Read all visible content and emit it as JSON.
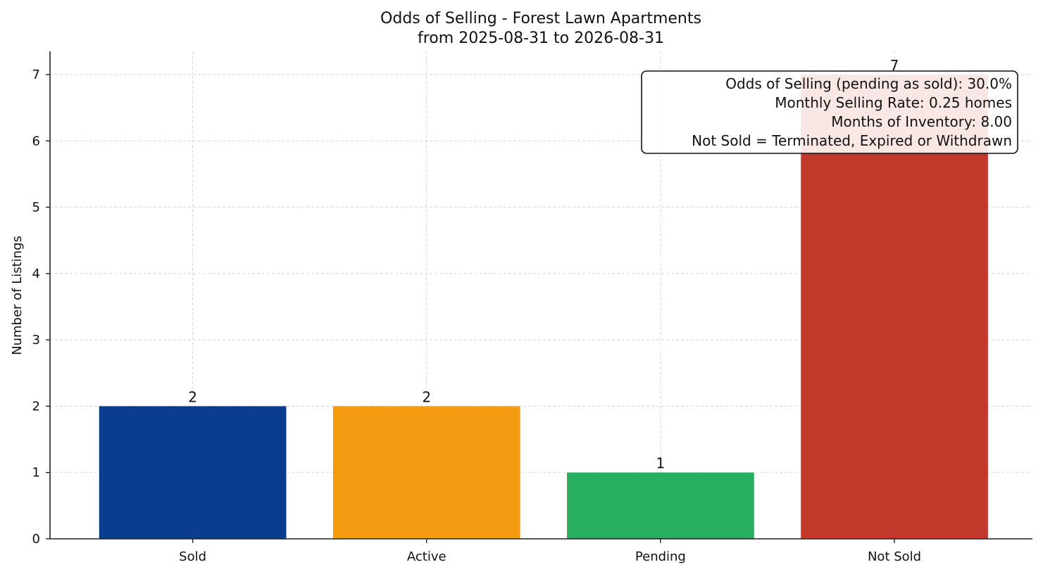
{
  "chart_data": {
    "type": "bar",
    "title": "Odds of Selling - Forest Lawn Apartments",
    "subtitle": "from 2025-08-31 to 2026-08-31",
    "xlabel": "",
    "ylabel": "Number of Listings",
    "categories": [
      "Sold",
      "Active",
      "Pending",
      "Not Sold"
    ],
    "values": [
      2,
      2,
      1,
      7
    ],
    "colors": [
      "#0b3d8f",
      "#f39c12",
      "#27ae60",
      "#c0392b"
    ],
    "data_labels": [
      "2",
      "2",
      "1",
      "7"
    ],
    "yticks": [
      0,
      1,
      2,
      3,
      4,
      5,
      6,
      7
    ],
    "ytick_labels": [
      "0",
      "1",
      "2",
      "3",
      "4",
      "5",
      "6",
      "7"
    ],
    "ylim": [
      0,
      7.35
    ],
    "grid": true,
    "legend": "none",
    "annotation": {
      "placement": "top-right",
      "lines": [
        "Odds of Selling (pending as sold): 30.0%",
        "Monthly Selling Rate: 0.25 homes",
        "Months of Inventory: 8.00",
        "Not Sold = Terminated, Expired or Withdrawn"
      ]
    }
  }
}
